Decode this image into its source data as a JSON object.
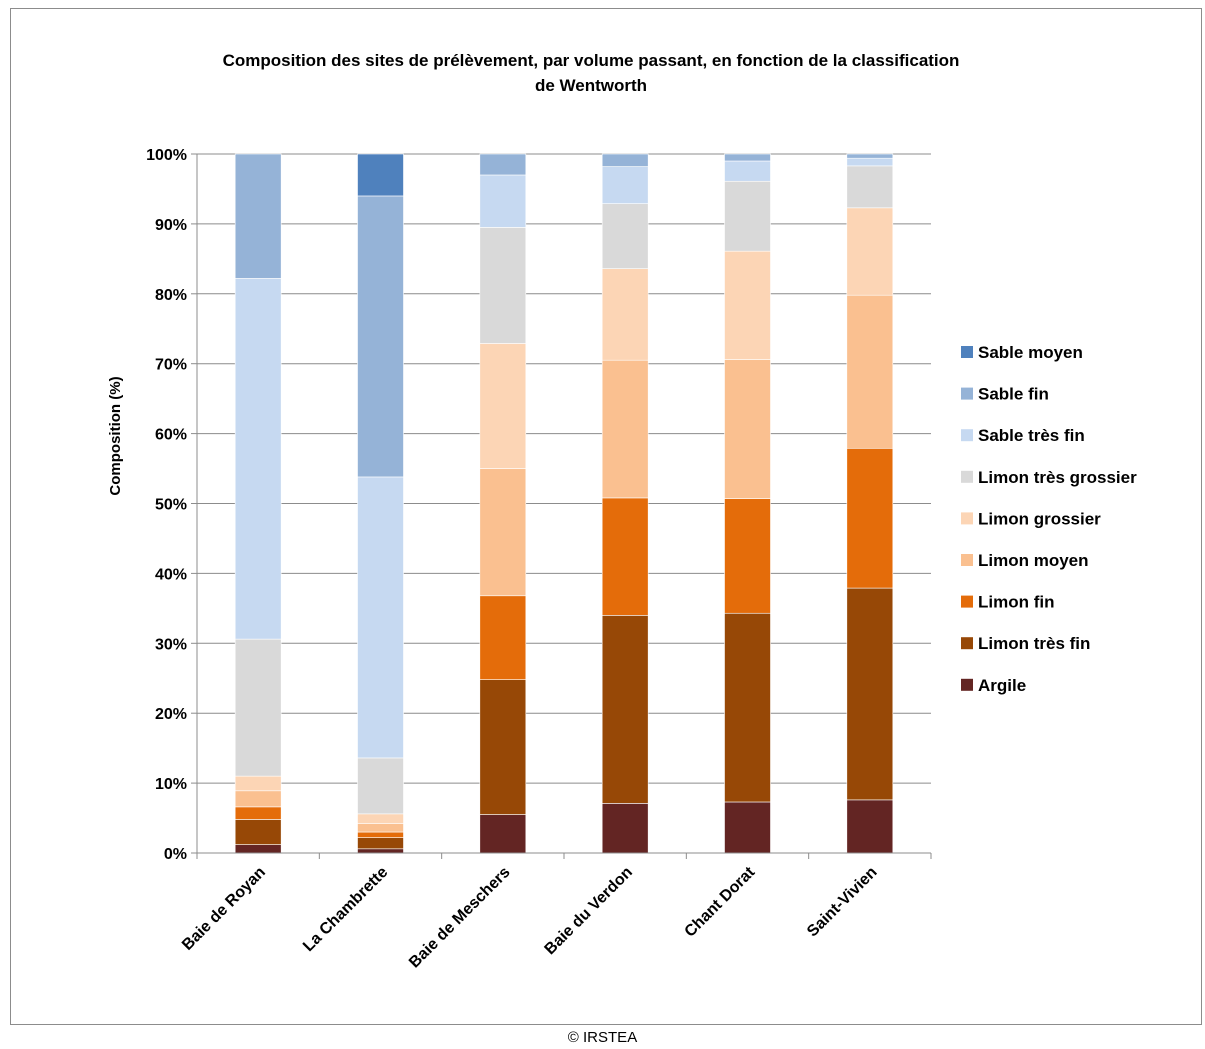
{
  "chart_data": {
    "type": "bar",
    "stacked": true,
    "title_lines": [
      "Composition des sites de prélèvement, par volume passant, en fonction de la classification",
      "de Wentworth"
    ],
    "ylabel": "Composition (%)",
    "xlabel": "",
    "ylim": [
      0,
      100
    ],
    "y_ticks": [
      "0%",
      "10%",
      "20%",
      "30%",
      "40%",
      "50%",
      "60%",
      "70%",
      "80%",
      "90%",
      "100%"
    ],
    "grid": true,
    "legend_position": "right",
    "categories": [
      "Baie de Royan",
      "La Chambrette",
      "Baie de Meschers",
      "Baie du Verdon",
      "Chant Dorat",
      "Saint-Vivien"
    ],
    "series": [
      {
        "name": "Argile",
        "color": "#632523",
        "values": [
          1.2,
          0.6,
          5.5,
          7.1,
          7.3,
          7.6
        ]
      },
      {
        "name": "Limon très fin",
        "color": "#974806",
        "values": [
          3.6,
          1.6,
          19.3,
          26.9,
          27.0,
          30.3
        ]
      },
      {
        "name": "Limon fin",
        "color": "#e46c0a",
        "values": [
          1.8,
          0.8,
          12.0,
          16.8,
          16.4,
          20.0
        ]
      },
      {
        "name": "Limon moyen",
        "color": "#fac090",
        "values": [
          2.3,
          1.2,
          18.2,
          19.7,
          19.9,
          21.9
        ]
      },
      {
        "name": "Limon grossier",
        "color": "#fcd5b5",
        "values": [
          2.1,
          1.4,
          17.9,
          13.1,
          15.5,
          12.5
        ]
      },
      {
        "name": "Limon très grossier",
        "color": "#d9d9d9",
        "values": [
          19.6,
          8.0,
          16.6,
          9.3,
          10.0,
          6.0
        ]
      },
      {
        "name": "Sable très fin",
        "color": "#c6d9f1",
        "values": [
          51.6,
          40.2,
          7.5,
          5.3,
          2.9,
          1.1
        ]
      },
      {
        "name": "Sable fin",
        "color": "#95b3d7",
        "values": [
          17.8,
          40.2,
          3.0,
          1.8,
          1.0,
          0.6
        ]
      },
      {
        "name": "Sable moyen",
        "color": "#4f81bd",
        "values": [
          0.0,
          6.0,
          0.0,
          0.0,
          0.0,
          0.0
        ]
      }
    ]
  },
  "footer": {
    "copyright": "© IRSTEA"
  }
}
